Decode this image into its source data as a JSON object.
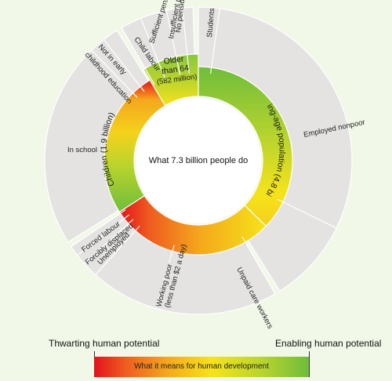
{
  "center_text": "What 7.3 billion people do",
  "inner_ring": {
    "working_age": "Working-age population (4.8 billion)",
    "children": "Children (1.9 billion)",
    "older_line1": "Older",
    "older_line2": "than 64",
    "older_line3": "(582 million)"
  },
  "outer_labels": {
    "no_pension_1": "No pension",
    "no_pension_2": "Insufficient pension",
    "sufficient_pension": "Sufficient pension",
    "students": "Students",
    "child_labour": "Child labour",
    "not_early_1": "Not in early",
    "not_early_2": "childhood education",
    "in_school": "In school",
    "employed_nonpoor": "Employed nonpoor",
    "unpaid_care": "Unpaid care workers",
    "working_poor_1": "Working poor",
    "working_poor_2": "(less than $2 a day)",
    "unemployed": "Unemployed",
    "forcibly_displaced": "Forcibly displaced",
    "forced_labour": "Forced labour"
  },
  "legend": {
    "left": "Thwarting human potential",
    "right": "Enabling human potential",
    "bar_text": "What it means for human development"
  },
  "colors": {
    "background": "#f1f8e8",
    "outer_segment": "#e4e3e2",
    "red": "#e3121a",
    "orange": "#f4a81c",
    "yellow": "#f6e31a",
    "green": "#6fbd3b"
  }
}
